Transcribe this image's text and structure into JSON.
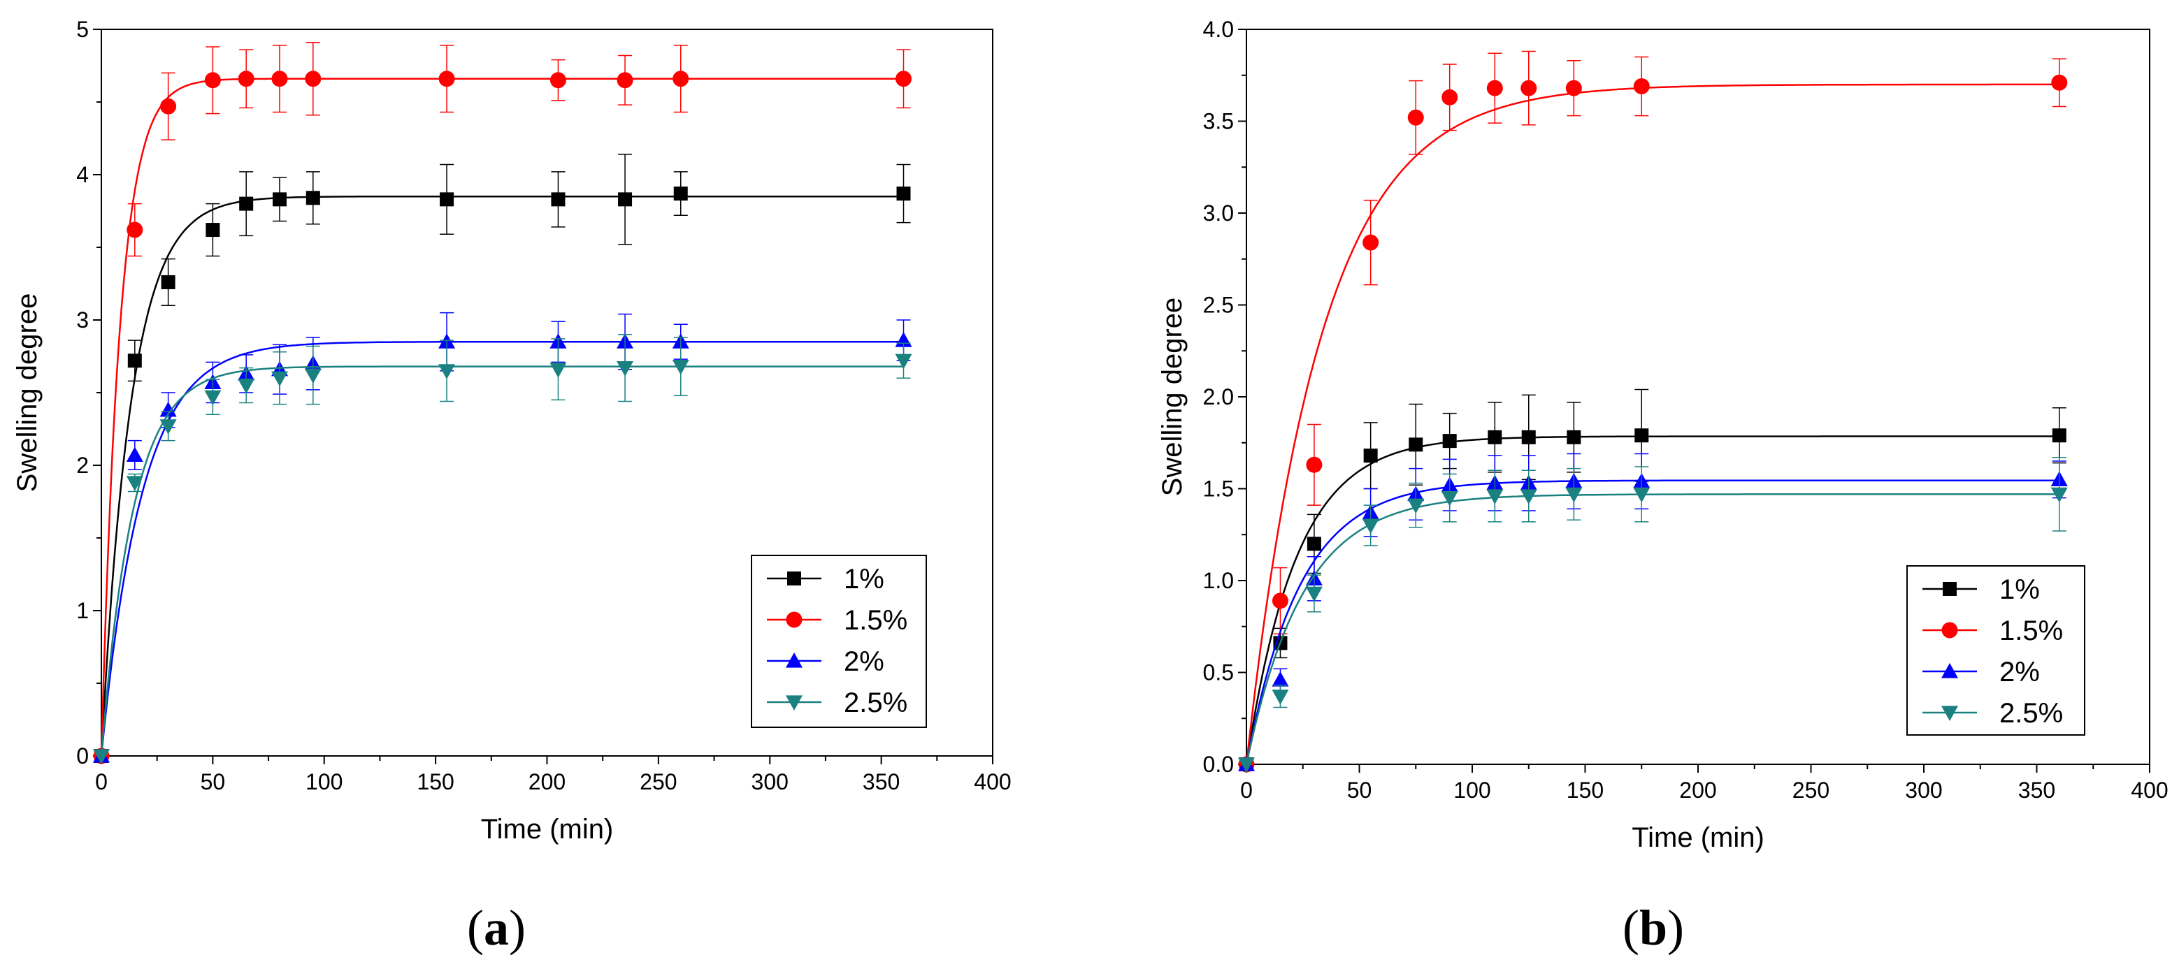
{
  "chart_data": [
    {
      "type": "scatter",
      "panel_label": "(a)",
      "panel_letter": "a",
      "xlabel": "Time (min)",
      "ylabel": "Swelling degree",
      "xlim": [
        0,
        400
      ],
      "ylim": [
        0,
        5
      ],
      "xticks": [
        "0",
        "50",
        "100",
        "150",
        "200",
        "250",
        "300",
        "350",
        "400"
      ],
      "yticks": [
        "0",
        "1",
        "2",
        "3",
        "4",
        "5"
      ],
      "grid": false,
      "legend_position": "bottom-right",
      "series": [
        {
          "name": "1%",
          "color": "#000000",
          "marker": "square",
          "x": [
            0,
            15,
            30,
            50,
            65,
            80,
            95,
            155,
            205,
            235,
            260,
            360
          ],
          "y": [
            0,
            2.72,
            3.26,
            3.62,
            3.8,
            3.83,
            3.84,
            3.83,
            3.83,
            3.83,
            3.87,
            3.87
          ],
          "err": [
            0,
            0.14,
            0.16,
            0.18,
            0.22,
            0.15,
            0.18,
            0.24,
            0.19,
            0.31,
            0.15,
            0.2
          ],
          "fit_max": 3.85,
          "fit_k": 0.075
        },
        {
          "name": "1.5%",
          "color": "#ff0000",
          "marker": "circle",
          "x": [
            0,
            15,
            30,
            50,
            65,
            80,
            95,
            155,
            205,
            235,
            260,
            360
          ],
          "y": [
            0,
            3.62,
            4.47,
            4.65,
            4.66,
            4.66,
            4.66,
            4.66,
            4.65,
            4.65,
            4.66,
            4.66
          ],
          "err": [
            0,
            0.18,
            0.23,
            0.23,
            0.2,
            0.23,
            0.25,
            0.23,
            0.14,
            0.17,
            0.23,
            0.2
          ],
          "fit_max": 4.66,
          "fit_k": 0.12
        },
        {
          "name": "2%",
          "color": "#0000ff",
          "marker": "triangle-up",
          "x": [
            0,
            15,
            30,
            50,
            65,
            80,
            95,
            155,
            205,
            235,
            260,
            360
          ],
          "y": [
            0,
            2.07,
            2.38,
            2.57,
            2.63,
            2.66,
            2.7,
            2.85,
            2.85,
            2.85,
            2.85,
            2.86
          ],
          "err": [
            0,
            0.1,
            0.12,
            0.14,
            0.13,
            0.17,
            0.18,
            0.2,
            0.14,
            0.19,
            0.12,
            0.14
          ],
          "fit_max": 2.85,
          "fit_k": 0.055
        },
        {
          "name": "2.5%",
          "color": "#1a8080",
          "marker": "triangle-down",
          "x": [
            0,
            15,
            30,
            50,
            65,
            80,
            95,
            155,
            205,
            235,
            260,
            360
          ],
          "y": [
            0,
            1.88,
            2.27,
            2.47,
            2.55,
            2.6,
            2.62,
            2.65,
            2.66,
            2.67,
            2.68,
            2.72
          ],
          "err": [
            0,
            0.06,
            0.1,
            0.12,
            0.12,
            0.18,
            0.2,
            0.21,
            0.21,
            0.23,
            0.2,
            0.12
          ],
          "fit_max": 2.68,
          "fit_k": 0.07
        }
      ]
    },
    {
      "type": "scatter",
      "panel_label": "(b)",
      "panel_letter": "b",
      "xlabel": "Time (min)",
      "ylabel": "Swelling degree",
      "xlim": [
        0,
        400
      ],
      "ylim": [
        0,
        4
      ],
      "xticks": [
        "0",
        "50",
        "100",
        "150",
        "200",
        "250",
        "300",
        "350",
        "400"
      ],
      "yticks": [
        "0.0",
        "0.5",
        "1.0",
        "1.5",
        "2.0",
        "2.5",
        "3.0",
        "3.5",
        "4.0"
      ],
      "grid": false,
      "legend_position": "bottom-right",
      "series": [
        {
          "name": "1%",
          "color": "#000000",
          "marker": "square",
          "x": [
            0,
            15,
            30,
            55,
            75,
            90,
            110,
            125,
            145,
            175,
            360
          ],
          "y": [
            0,
            0.66,
            1.2,
            1.68,
            1.74,
            1.76,
            1.78,
            1.78,
            1.78,
            1.79,
            1.79
          ],
          "err": [
            0,
            0.08,
            0.16,
            0.18,
            0.22,
            0.15,
            0.19,
            0.23,
            0.19,
            0.25,
            0.15
          ],
          "fit_max": 1.785,
          "fit_k": 0.045
        },
        {
          "name": "1.5%",
          "color": "#ff0000",
          "marker": "circle",
          "x": [
            0,
            15,
            30,
            55,
            75,
            90,
            110,
            125,
            145,
            175,
            360
          ],
          "y": [
            0,
            0.89,
            1.63,
            2.84,
            3.52,
            3.63,
            3.68,
            3.68,
            3.68,
            3.69,
            3.71
          ],
          "err": [
            0,
            0.18,
            0.22,
            0.23,
            0.2,
            0.18,
            0.19,
            0.2,
            0.15,
            0.16,
            0.13
          ],
          "fit_max": 3.7,
          "fit_k": 0.03
        },
        {
          "name": "2%",
          "color": "#0000ff",
          "marker": "triangle-up",
          "x": [
            0,
            15,
            30,
            55,
            75,
            90,
            110,
            125,
            145,
            175,
            360
          ],
          "y": [
            0,
            0.46,
            1.01,
            1.37,
            1.47,
            1.52,
            1.53,
            1.53,
            1.54,
            1.54,
            1.55
          ],
          "err": [
            0,
            0.06,
            0.12,
            0.13,
            0.14,
            0.14,
            0.15,
            0.15,
            0.15,
            0.15,
            0.1
          ],
          "fit_max": 1.545,
          "fit_k": 0.042
        },
        {
          "name": "2.5%",
          "color": "#1a8080",
          "marker": "triangle-down",
          "x": [
            0,
            15,
            30,
            55,
            75,
            90,
            110,
            125,
            145,
            175,
            360
          ],
          "y": [
            0,
            0.37,
            0.93,
            1.3,
            1.41,
            1.45,
            1.46,
            1.46,
            1.47,
            1.47,
            1.47
          ],
          "err": [
            0,
            0.06,
            0.1,
            0.11,
            0.12,
            0.13,
            0.14,
            0.14,
            0.14,
            0.15,
            0.2
          ],
          "fit_max": 1.47,
          "fit_k": 0.04
        }
      ]
    }
  ]
}
